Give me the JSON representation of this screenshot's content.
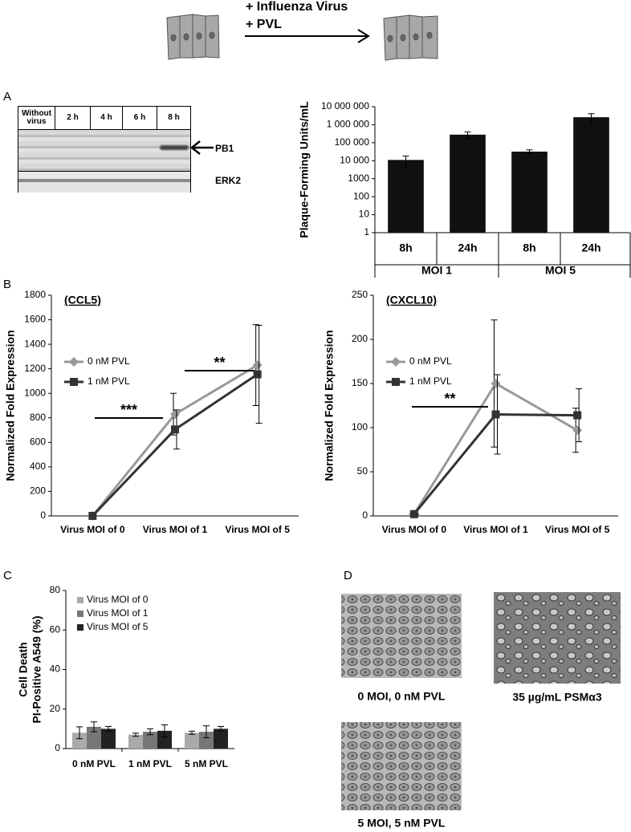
{
  "schematic": {
    "treatment": [
      "+ Influenza Virus",
      "+ PVL"
    ]
  },
  "panel_labels": [
    "A",
    "B",
    "C",
    "D"
  ],
  "blot": {
    "lanes": [
      "Without virus",
      "2 h",
      "4 h",
      "6 h",
      "8 h"
    ],
    "bands": [
      "PB1",
      "ERK2"
    ]
  },
  "chart_data": [
    {
      "type": "bar",
      "log_scale": true,
      "y_label": "Plaque-Forming Units/mL",
      "categories": [
        "8h",
        "24h",
        "8h",
        "24h"
      ],
      "group_labels": [
        "MOI 1",
        "MOI 5"
      ],
      "values": [
        11000,
        280000,
        32000,
        2600000
      ],
      "errors": [
        7000,
        120000,
        8000,
        1500000
      ],
      "color": "#111111",
      "ylim": [
        1,
        10000000
      ],
      "yticks": [
        1,
        10,
        100,
        1000,
        {
          "value": 10000,
          "label": "10 000"
        },
        {
          "value": 100000,
          "label": "100 000"
        },
        {
          "value": 1000000,
          "label": "1 000 000"
        },
        {
          "value": 10000000,
          "label": "10 000 000"
        }
      ]
    },
    {
      "type": "line",
      "title": "(CCL5)",
      "y_label": "Normalized Fold Expression",
      "categories": [
        "Virus MOI of 0",
        "Virus MOI of 1",
        "Virus MOI of 5"
      ],
      "series": [
        {
          "name": "0 nM PVL",
          "color": "#999999",
          "marker": "diamond",
          "values": [
            0,
            830,
            1230
          ],
          "errors": [
            0,
            170,
            330
          ]
        },
        {
          "name": "1 nM PVL",
          "color": "#333333",
          "marker": "square",
          "values": [
            0,
            705,
            1155
          ],
          "errors": [
            0,
            160,
            400
          ]
        }
      ],
      "annotations": [
        "***",
        "**"
      ],
      "ylim": [
        0,
        1800
      ],
      "yticks": [
        0,
        200,
        400,
        600,
        800,
        1000,
        1200,
        1400,
        1600,
        1800
      ]
    },
    {
      "type": "line",
      "title": "(CXCL10)",
      "y_label": "Normalized Fold Expression",
      "categories": [
        "Virus MOI of 0",
        "Virus MOI of 1",
        "Virus MOI of 5"
      ],
      "series": [
        {
          "name": "0 nM PVL",
          "color": "#999999",
          "marker": "diamond",
          "values": [
            2,
            150,
            97
          ],
          "errors": [
            0,
            72,
            25
          ]
        },
        {
          "name": "1 nM PVL",
          "color": "#333333",
          "marker": "square",
          "values": [
            2,
            115,
            114
          ],
          "errors": [
            0,
            45,
            30
          ]
        }
      ],
      "annotations": [
        "**"
      ],
      "ylim": [
        0,
        250
      ],
      "yticks": [
        0,
        50,
        100,
        150,
        200,
        250
      ]
    },
    {
      "type": "bar",
      "y_label": [
        "Cell Death",
        "PI-Positive A549 (%)"
      ],
      "categories": [
        "0 nM PVL",
        "1 nM PVL",
        "5 nM PVL"
      ],
      "series": [
        {
          "name": "Virus MOI of 0",
          "color": "#aaaaaa",
          "values": [
            8,
            7,
            8
          ],
          "errors": [
            3,
            0.8,
            0.8
          ]
        },
        {
          "name": "Virus MOI of 1",
          "color": "#777777",
          "values": [
            11,
            8.5,
            8.5
          ],
          "errors": [
            2.5,
            1.5,
            3
          ]
        },
        {
          "name": "Virus MOI of 5",
          "color": "#222222",
          "values": [
            10,
            9,
            10
          ],
          "errors": [
            1.2,
            3,
            1.2
          ]
        }
      ],
      "ylim": [
        0,
        80
      ],
      "yticks": [
        0,
        20,
        40,
        60,
        80
      ]
    }
  ],
  "micrographs": [
    {
      "caption": "0 MOI, 0 nM PVL"
    },
    {
      "caption": "35 µg/mL PSMα3"
    },
    {
      "caption": "5 MOI, 5 nM PVL"
    }
  ]
}
